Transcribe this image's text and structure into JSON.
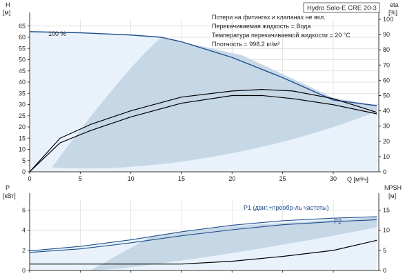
{
  "product_label": "Hydro Solo-E CRE 20-3",
  "notes": [
    "Потери на фитингах и клапанах не вкл.",
    "Перекачиваемая жидкость = Вода",
    "Температура перекачиваемой жидкости = 20 °C",
    "Плотность = 998.2 кг/м³"
  ],
  "chart_data": [
    {
      "type": "line",
      "left_axis": {
        "label_top": "H",
        "label_unit": "[м]",
        "ticks": [
          0,
          5,
          10,
          15,
          20,
          25,
          30,
          35,
          40,
          45,
          50,
          55,
          60,
          65
        ],
        "ylim": [
          0,
          68
        ]
      },
      "right_axis": {
        "label_top": "eta",
        "label_unit": "[%]",
        "ticks": [
          0,
          10,
          20,
          30,
          40,
          50,
          60,
          70,
          80,
          90,
          100
        ],
        "ylim": [
          0,
          100
        ]
      },
      "x_axis": {
        "label": "Q [м³/ч]",
        "ticks": [
          0,
          5,
          10,
          15,
          20,
          25,
          30
        ],
        "xlim": [
          0,
          34.5
        ]
      },
      "grid": true,
      "series": [
        {
          "name": "100 %",
          "x": [
            0,
            5,
            10,
            13,
            15,
            20,
            25,
            30,
            34.3
          ],
          "y": [
            62.5,
            62,
            61,
            60,
            58,
            51,
            42,
            32,
            29.5
          ],
          "axis": "left",
          "color": "#1f4e8c"
        },
        {
          "x": [
            0,
            3,
            6,
            10,
            15,
            20,
            23,
            26,
            30,
            34.3
          ],
          "y": [
            0,
            22,
            31,
            40,
            49,
            53,
            54,
            53,
            48,
            39
          ],
          "axis": "right",
          "color": "#000000"
        },
        {
          "x": [
            0,
            3,
            6,
            10,
            15,
            20,
            23,
            26,
            30,
            34.3
          ],
          "y": [
            0,
            19,
            27,
            36,
            45,
            50,
            50,
            48,
            44,
            38
          ],
          "axis": "right",
          "color": "#000000"
        }
      ],
      "annotations": [
        "100 %"
      ]
    },
    {
      "type": "line",
      "left_axis": {
        "label_top": "P",
        "label_unit": "[кВт]",
        "ticks": [
          0,
          2,
          4,
          6
        ],
        "ylim": [
          0,
          7
        ]
      },
      "right_axis": {
        "label_top": "NPSH",
        "label_unit": "[м]",
        "ticks": [
          0,
          5,
          10,
          15
        ],
        "ylim": [
          0,
          17.5
        ]
      },
      "x_axis": {
        "xlim": [
          0,
          34.5
        ]
      },
      "grid": true,
      "series": [
        {
          "name": "P1 (двиг.+преобр-ль частоты)",
          "x": [
            0,
            5,
            10,
            15,
            20,
            25,
            30,
            34.3
          ],
          "y": [
            1.95,
            2.4,
            3.05,
            3.85,
            4.5,
            4.95,
            5.2,
            5.35
          ],
          "axis": "left",
          "color": "#1f4e8c"
        },
        {
          "name": "P2",
          "x": [
            0,
            5,
            10,
            15,
            20,
            25,
            30,
            34.3
          ],
          "y": [
            1.8,
            2.15,
            2.75,
            3.45,
            4.05,
            4.55,
            4.85,
            5.05
          ],
          "axis": "left",
          "color": "#1f4e8c"
        },
        {
          "x": [
            0,
            10,
            15,
            20,
            25,
            30,
            34.3
          ],
          "y": [
            1.6,
            1.6,
            1.6,
            2.3,
            3.5,
            5.0,
            7.5
          ],
          "axis": "right",
          "color": "#000000"
        }
      ]
    }
  ]
}
